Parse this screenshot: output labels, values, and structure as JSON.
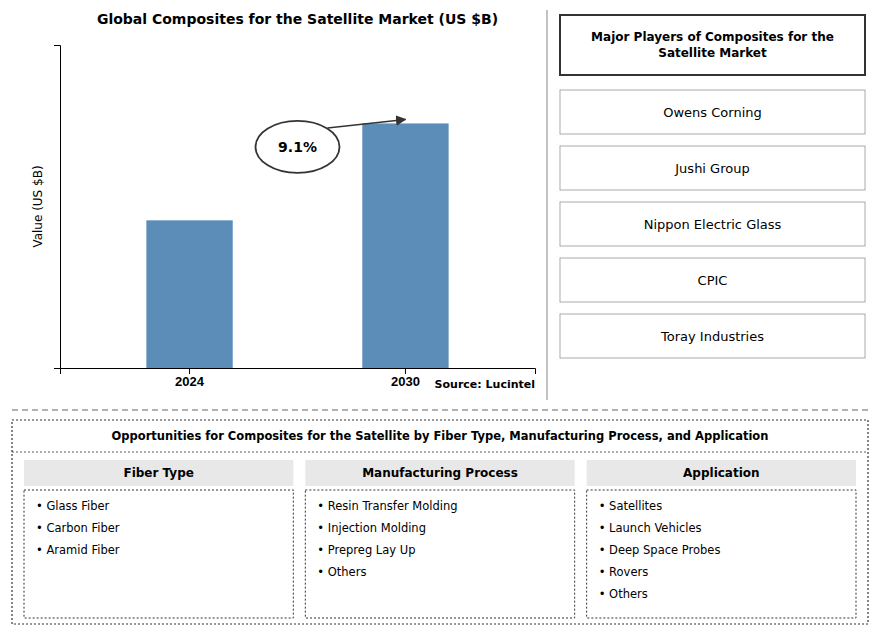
{
  "chart_data": {
    "type": "bar",
    "title": "Global Composites for the Satellite Market (US $B)",
    "categories": [
      "2024",
      "2030"
    ],
    "values": [
      3.2,
      5.3
    ],
    "color": "#5B8DB8",
    "ylabel": "Value (US $B)",
    "ylim": [
      0,
      7.0
    ],
    "tick_labels": "x",
    "grid": false,
    "annotations": [
      "9.1%",
      "Source: Lucintel"
    ],
    "side_panel": {
      "title": "Major Players of Composites for the\nSatellite Market",
      "items": [
        "Owens Corning",
        "Jushi Group",
        "Nippon Electric Glass",
        "CPIC",
        "Toray Industries"
      ]
    },
    "bottom_panel": {
      "title": "Opportunities for Composites for the Satellite by Fiber Type, Manufacturing Process, and Application",
      "columns": [
        {
          "title": "Fiber Type",
          "items": [
            "• Glass Fiber",
            "• Carbon Fiber",
            "• Aramid Fiber"
          ]
        },
        {
          "title": "Manufacturing Process",
          "items": [
            "• Resin Transfer Molding",
            "• Injection Molding",
            "• Prepreg Lay Up",
            "• Others"
          ]
        },
        {
          "title": "Application",
          "items": [
            "• Satellites",
            "• Launch Vehicles",
            "• Deep Space Probes",
            "• Rovers",
            "• Others"
          ]
        }
      ]
    }
  }
}
